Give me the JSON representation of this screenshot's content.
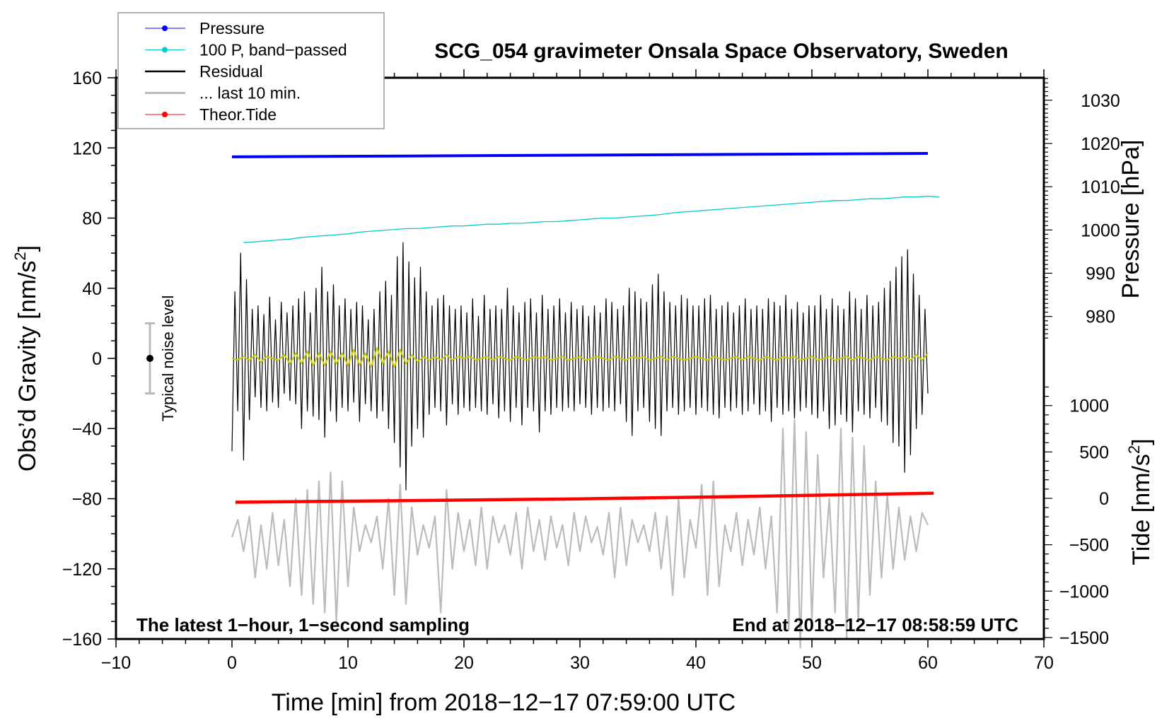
{
  "chart_data": {
    "type": "line",
    "title": "SCG_054 gravimeter Onsala Space Observatory, Sweden",
    "xlabel": "Time [min] from 2018−12−17 07:59:00 UTC",
    "ylabel": "Obs’d Gravity [nm/s2]",
    "ylabel_main": "Obs’d Gravity [nm/s",
    "ylabel_sup": "2",
    "ylabel_end": "]",
    "y2label": "Pressure [hPa]",
    "y3label_main": "Tide [nm/s",
    "y3label_sup": "2",
    "y3label_end": "]",
    "xlim": [
      -10,
      70
    ],
    "ylim": [
      -160,
      160
    ],
    "pressure_lim": [
      975,
      1035
    ],
    "tide_lim": [
      -1500,
      1200
    ],
    "x_ticks": [
      "−10",
      "0",
      "10",
      "20",
      "30",
      "40",
      "50",
      "60",
      "70"
    ],
    "y_ticks": [
      "160",
      "120",
      "80",
      "40",
      "0",
      "−40",
      "−80",
      "−120",
      "−160"
    ],
    "pressure_ticks": [
      "1030",
      "1020",
      "1010",
      "1000",
      "990",
      "980"
    ],
    "tide_ticks": [
      "1000",
      "500",
      "0",
      "−500",
      "−1000",
      "−1500"
    ],
    "annotation_left": "The latest 1−hour, 1−second sampling",
    "annotation_right": "End at 2018−12−17 08:58:59 UTC",
    "noise_label": "Typical noise level",
    "noise_level": 20,
    "legend_position": "top-left",
    "legend": [
      {
        "label": "Pressure",
        "color": "#0000ff",
        "marker": true
      },
      {
        "label": "100 P, band−passed",
        "color": "#00cccc",
        "marker": true
      },
      {
        "label": "Residual",
        "color": "#000000",
        "marker": false
      },
      {
        "label": "... last 10 min.",
        "color": "#bbbbbb",
        "marker": false
      },
      {
        "label": "Theor.Tide",
        "color": "#ff0000",
        "marker": true
      }
    ],
    "series": {
      "pressure_hpa": {
        "x": [
          0,
          15,
          30,
          45,
          60
        ],
        "values": [
          1016.9,
          1017.1,
          1017.3,
          1017.5,
          1017.7
        ],
        "color": "#0000ff"
      },
      "pressure_bandpassed_100": {
        "x_start": 1,
        "x_step": 1,
        "color": "#00cccc",
        "values": [
          66,
          66.5,
          67,
          67.5,
          68,
          69,
          69.5,
          70,
          70.5,
          71,
          72,
          72.5,
          73,
          73.5,
          74,
          74,
          74.5,
          75,
          75.5,
          75.5,
          76,
          76.5,
          76.5,
          77,
          77,
          77.5,
          78,
          78,
          78.5,
          79,
          79.5,
          80,
          80,
          80.5,
          81,
          81.5,
          82,
          83,
          83.5,
          84,
          84.5,
          85,
          85.5,
          86,
          86.5,
          87,
          87.5,
          88,
          88.5,
          89,
          89.5,
          90,
          90,
          90.5,
          91,
          91,
          91.5,
          92,
          92,
          92.5,
          92
        ]
      },
      "residual": {
        "x_start": 0,
        "x_step": 0.25,
        "color": "#000000",
        "values": [
          -53,
          38,
          -30,
          60,
          -58,
          45,
          -35,
          28,
          -22,
          30,
          -28,
          25,
          -30,
          35,
          -25,
          22,
          -28,
          32,
          -20,
          26,
          -24,
          30,
          -26,
          34,
          -40,
          38,
          -30,
          26,
          -33,
          40,
          -35,
          52,
          -45,
          38,
          -30,
          42,
          -36,
          30,
          -28,
          34,
          -30,
          28,
          -25,
          32,
          -36,
          30,
          -26,
          22,
          -30,
          28,
          -34,
          38,
          -30,
          44,
          -40,
          36,
          -48,
          58,
          -62,
          66,
          -75,
          55,
          -50,
          46,
          -40,
          52,
          -45,
          38,
          -32,
          30,
          -28,
          34,
          -30,
          36,
          -38,
          30,
          -26,
          28,
          -32,
          30,
          -28,
          26,
          -30,
          34,
          -28,
          24,
          -30,
          36,
          -32,
          28,
          -26,
          30,
          -34,
          28,
          -30,
          40,
          -36,
          30,
          -28,
          26,
          -38,
          32,
          -28,
          34,
          -30,
          26,
          -42,
          36,
          -30,
          28,
          -32,
          30,
          -28,
          34,
          -30,
          26,
          -28,
          32,
          -30,
          28,
          -26,
          30,
          -28,
          24,
          -32,
          30,
          -28,
          26,
          -30,
          34,
          -28,
          32,
          -30,
          28,
          -26,
          30,
          -36,
          40,
          -44,
          38,
          -30,
          34,
          -28,
          32,
          -36,
          42,
          -40,
          48,
          -44,
          38,
          -30,
          32,
          -28,
          30,
          -32,
          36,
          -30,
          34,
          -28,
          30,
          -32,
          30,
          -28,
          34,
          -30,
          36,
          -32,
          28,
          -34,
          30,
          -28,
          32,
          -30,
          26,
          -28,
          30,
          -32,
          34,
          -30,
          28,
          -26,
          30,
          -32,
          28,
          -30,
          34,
          -36,
          32,
          -28,
          30,
          -32,
          36,
          -30,
          28,
          -34,
          32,
          -30,
          26,
          -28,
          30,
          -32,
          30,
          -34,
          36,
          -30,
          28,
          -40,
          34,
          -38,
          30,
          -32,
          28,
          -36,
          38,
          -42,
          34,
          -30,
          28,
          -32,
          36,
          -34,
          30,
          -28,
          32,
          -36,
          40,
          -38,
          44,
          -48,
          52,
          -50,
          58,
          -65,
          62,
          -55,
          48,
          -40,
          36,
          -32,
          28,
          -20
        ]
      },
      "residual_smoothed": {
        "x_start": 0,
        "x_step": 0.5,
        "color": "#cccc00",
        "values": [
          0,
          -1,
          1,
          -1,
          2,
          -2,
          1,
          0,
          -1,
          2,
          -3,
          3,
          -3,
          4,
          -4,
          3,
          -4,
          4,
          -3,
          3,
          -4,
          5,
          -4,
          3,
          -5,
          6,
          -3,
          4,
          -5,
          5,
          -3,
          2,
          -2,
          1,
          -1,
          1,
          -1,
          2,
          -1,
          1,
          0,
          1,
          -1,
          0,
          1,
          -1,
          1,
          0,
          -1,
          1,
          0,
          -1,
          1,
          0,
          1,
          -1,
          0,
          1,
          -1,
          0,
          1,
          -1,
          0,
          1,
          0,
          -1,
          1,
          0,
          -1,
          1,
          0,
          1,
          -1,
          0,
          1,
          -1,
          1,
          0,
          -1,
          0,
          1,
          0,
          -1,
          1,
          0,
          -1,
          0,
          1,
          -1,
          1,
          0,
          -1,
          1,
          0,
          -1,
          1,
          0,
          1,
          -1,
          0,
          1,
          -1,
          0,
          1,
          -1,
          0,
          1,
          -1,
          1,
          0,
          -1,
          1,
          0,
          -1,
          1,
          0,
          1,
          -1,
          2,
          -1,
          3
        ]
      },
      "last_10_min": {
        "x_start": 0,
        "x_step": 0.5,
        "color": "#bbbbbb",
        "values": [
          -102,
          -92,
          -110,
          -90,
          -125,
          -95,
          -120,
          -88,
          -118,
          -92,
          -130,
          -80,
          -135,
          -75,
          -140,
          -70,
          -145,
          -65,
          -150,
          -70,
          -130,
          -85,
          -110,
          -95,
          -105,
          -90,
          -120,
          -80,
          -135,
          -72,
          -140,
          -85,
          -112,
          -95,
          -108,
          -90,
          -145,
          -75,
          -120,
          -88,
          -110,
          -92,
          -118,
          -85,
          -120,
          -90,
          -105,
          -95,
          -112,
          -88,
          -120,
          -85,
          -110,
          -92,
          -115,
          -90,
          -108,
          -95,
          -118,
          -88,
          -110,
          -90,
          -105,
          -96,
          -112,
          -88,
          -125,
          -85,
          -118,
          -92,
          -105,
          -95,
          -110,
          -88,
          -120,
          -90,
          -135,
          -80,
          -125,
          -92,
          -108,
          -72,
          -135,
          -70,
          -130,
          -95,
          -110,
          -88,
          -118,
          -92,
          -112,
          -85,
          -120,
          -90,
          -145,
          -40,
          -155,
          -35,
          -165,
          -42,
          -150,
          -55,
          -125,
          -80,
          -145,
          -40,
          -160,
          -45,
          -150,
          -50,
          -135,
          -70,
          -125,
          -78,
          -120,
          -85,
          -115,
          -90,
          -110,
          -88,
          -95
        ]
      },
      "theoretical_tide_nms2": {
        "x": [
          0.3,
          15,
          30,
          45,
          60.5
        ],
        "values": [
          -42,
          -25,
          -5,
          22,
          55
        ],
        "color": "#ff0000"
      }
    }
  }
}
